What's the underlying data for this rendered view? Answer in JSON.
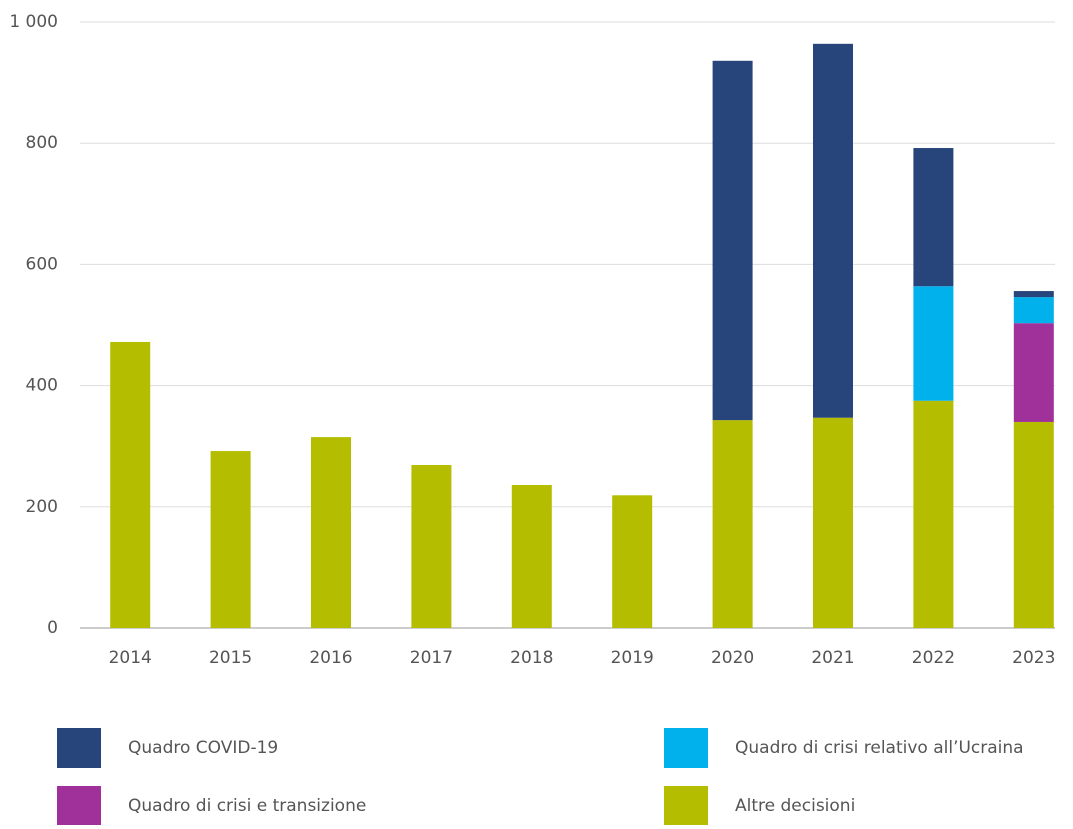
{
  "chart_data": {
    "type": "stacked_bar",
    "categories": [
      "2014",
      "2015",
      "2016",
      "2017",
      "2018",
      "2019",
      "2020",
      "2021",
      "2022",
      "2023"
    ],
    "series": [
      {
        "name": "Altre decisioni",
        "color": "#b5bd00",
        "values": [
          472,
          292,
          315,
          269,
          236,
          219,
          343,
          347,
          375,
          340
        ]
      },
      {
        "name": "Quadro di crisi e transizione",
        "color": "#a0309a",
        "values": [
          0,
          0,
          0,
          0,
          0,
          0,
          0,
          0,
          0,
          163
        ]
      },
      {
        "name": "Quadro di crisi relativo all’Ucraina",
        "color": "#00b1eb",
        "values": [
          0,
          0,
          0,
          0,
          0,
          0,
          0,
          0,
          189,
          43
        ]
      },
      {
        "name": "Quadro COVID-19",
        "color": "#27457b",
        "values": [
          0,
          0,
          0,
          0,
          0,
          0,
          593,
          617,
          228,
          10
        ]
      }
    ],
    "ylim": [
      0,
      1000
    ],
    "yticks": [
      0,
      200,
      400,
      600,
      800,
      {
        "value": 1000,
        "label": "1 000"
      }
    ],
    "grid": true
  }
}
